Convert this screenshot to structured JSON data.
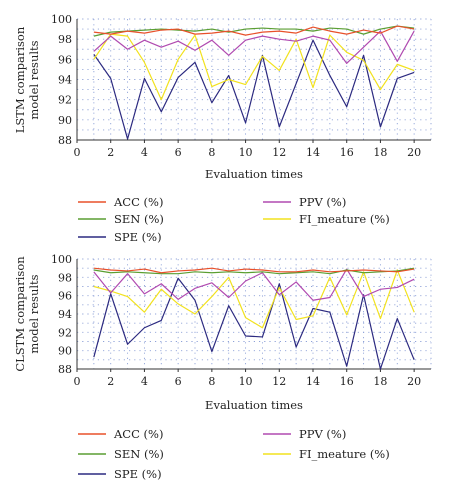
{
  "chart_data": [
    {
      "type": "line",
      "xlabel": "Evaluation times",
      "ylabel": "LSTM comparison model results",
      "xlim": [
        0,
        21
      ],
      "ylim": [
        88,
        100
      ],
      "xticks": [
        0,
        2,
        4,
        6,
        8,
        10,
        12,
        14,
        16,
        18,
        20
      ],
      "yticks": [
        88,
        90,
        92,
        94,
        96,
        98,
        100
      ],
      "grid": true,
      "legend_position": "below",
      "x": [
        1,
        2,
        3,
        4,
        5,
        6,
        7,
        8,
        9,
        10,
        11,
        12,
        13,
        14,
        15,
        16,
        17,
        18,
        19,
        20
      ],
      "series": [
        {
          "name": "ACC (%)",
          "color": "#e8502a",
          "values": [
            98.7,
            98.5,
            98.8,
            98.6,
            98.9,
            99.0,
            98.5,
            98.6,
            98.8,
            98.4,
            98.7,
            98.8,
            98.6,
            99.2,
            98.8,
            98.5,
            98.9,
            98.6,
            99.3,
            99.0
          ]
        },
        {
          "name": "SEN (%)",
          "color": "#5a9e32",
          "values": [
            98.3,
            98.7,
            98.8,
            98.9,
            99.0,
            98.9,
            98.8,
            99.0,
            98.7,
            99.0,
            99.1,
            99.0,
            99.0,
            98.8,
            99.1,
            99.0,
            98.5,
            99.0,
            99.3,
            99.1
          ]
        },
        {
          "name": "PPV (%)",
          "color": "#b04ab0",
          "values": [
            96.8,
            98.3,
            97.0,
            97.9,
            97.2,
            97.8,
            96.9,
            97.9,
            96.4,
            97.9,
            98.3,
            98.0,
            97.8,
            98.3,
            97.9,
            95.6,
            97.2,
            98.8,
            95.8,
            98.8
          ]
        },
        {
          "name": "FI_meature (%)",
          "color": "#f2e21e",
          "values": [
            96.0,
            98.5,
            98.3,
            95.7,
            92.0,
            96.0,
            98.4,
            93.3,
            94.0,
            93.5,
            96.3,
            94.9,
            98.0,
            93.2,
            98.4,
            96.7,
            95.9,
            93.0,
            95.5,
            94.9
          ]
        },
        {
          "name": "SPE (%)",
          "color": "#2c2a80",
          "values": [
            96.5,
            94.1,
            88.1,
            94.1,
            90.8,
            94.2,
            95.7,
            91.7,
            94.4,
            89.7,
            96.4,
            89.3,
            93.6,
            97.9,
            94.4,
            91.3,
            96.4,
            89.3,
            94.1,
            94.7
          ]
        }
      ]
    },
    {
      "type": "line",
      "xlabel": "Evaluation times",
      "ylabel": "CLSTM comparison model results",
      "xlim": [
        0,
        21
      ],
      "ylim": [
        88,
        100
      ],
      "xticks": [
        0,
        2,
        4,
        6,
        8,
        10,
        12,
        14,
        16,
        18,
        20
      ],
      "yticks": [
        88,
        90,
        92,
        94,
        96,
        98,
        100
      ],
      "grid": true,
      "legend_position": "below",
      "x": [
        1,
        2,
        3,
        4,
        5,
        6,
        7,
        8,
        9,
        10,
        11,
        12,
        13,
        14,
        15,
        16,
        17,
        18,
        19,
        20
      ],
      "series": [
        {
          "name": "ACC (%)",
          "color": "#e8502a",
          "values": [
            99.0,
            98.8,
            98.7,
            98.9,
            98.5,
            98.7,
            98.8,
            99.0,
            98.7,
            98.9,
            98.8,
            98.6,
            98.6,
            98.8,
            98.6,
            98.7,
            98.8,
            98.7,
            98.6,
            98.9
          ]
        },
        {
          "name": "SEN (%)",
          "color": "#5a9e32",
          "values": [
            98.8,
            98.5,
            98.6,
            98.5,
            98.4,
            98.4,
            98.6,
            98.5,
            98.6,
            98.5,
            98.6,
            98.4,
            98.5,
            98.6,
            98.4,
            98.8,
            98.5,
            98.6,
            98.7,
            99.0
          ]
        },
        {
          "name": "PPV (%)",
          "color": "#b04ab0",
          "values": [
            98.6,
            96.3,
            98.4,
            96.2,
            97.3,
            95.6,
            96.8,
            97.4,
            95.8,
            97.6,
            98.5,
            96.1,
            97.5,
            95.5,
            95.8,
            98.9,
            95.9,
            96.7,
            96.9,
            97.8
          ]
        },
        {
          "name": "FI_meature (%)",
          "color": "#f2e21e",
          "values": [
            97.0,
            96.5,
            95.9,
            94.2,
            96.7,
            95.1,
            94.0,
            95.9,
            98.0,
            93.6,
            92.5,
            96.9,
            93.4,
            93.8,
            98.0,
            93.9,
            98.6,
            93.5,
            98.8,
            94.2
          ]
        },
        {
          "name": "SPE (%)",
          "color": "#2c2a80",
          "values": [
            89.3,
            96.2,
            90.7,
            92.5,
            93.3,
            97.9,
            95.5,
            89.9,
            94.9,
            91.6,
            91.5,
            97.3,
            90.4,
            94.6,
            94.2,
            88.3,
            96.1,
            88.0,
            93.5,
            89.0
          ]
        }
      ]
    }
  ]
}
